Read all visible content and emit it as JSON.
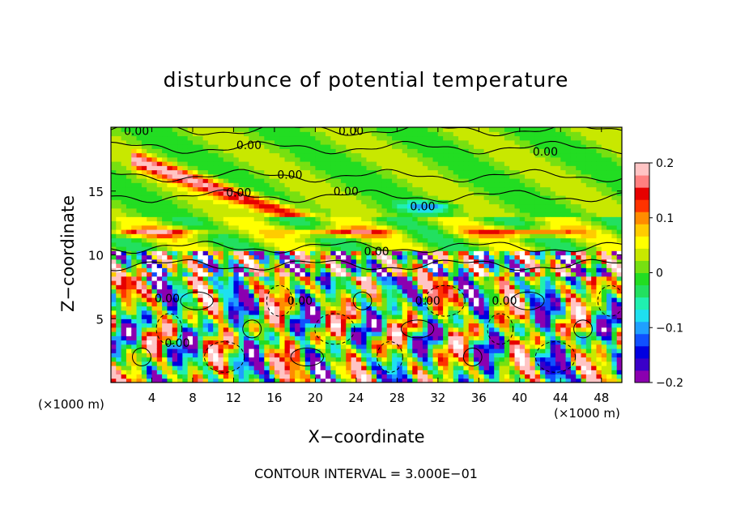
{
  "chart_data": {
    "type": "heatmap",
    "title": "disturbunce of potential temperature",
    "xlabel": "X−coordinate",
    "ylabel": "Z−coordinate",
    "x_unit_label": "(×1000 m)",
    "x_unit_label_right": "(×1000 m)",
    "footnote": "CONTOUR INTERVAL = 3.000E−01",
    "xlim": [
      0,
      50
    ],
    "ylim": [
      0,
      20
    ],
    "x_ticks": [
      4,
      8,
      12,
      16,
      20,
      24,
      28,
      32,
      36,
      40,
      44,
      48
    ],
    "y_ticks": [
      5,
      10,
      15
    ],
    "colorbar": {
      "range": [
        -0.2,
        0.2
      ],
      "ticks": [
        {
          "value": 0.2,
          "label": "0.2"
        },
        {
          "value": 0.1,
          "label": "0.1"
        },
        {
          "value": 0,
          "label": "0"
        },
        {
          "value": -0.1,
          "label": "−0.1"
        },
        {
          "value": -0.2,
          "label": "−0.2"
        }
      ],
      "colors": [
        "#8b00b0",
        "#3a00c8",
        "#0000e0",
        "#1050ff",
        "#1fa0ff",
        "#1ee0f0",
        "#20f0b0",
        "#22e060",
        "#22dd22",
        "#77e011",
        "#c8e800",
        "#ffff00",
        "#ffcc00",
        "#ff8c00",
        "#ff3300",
        "#e60000",
        "#ff8080",
        "#ffc4c4"
      ]
    },
    "contour_labels": [
      {
        "x": 2.5,
        "y": 19.7,
        "text": "0.00"
      },
      {
        "x": 23.5,
        "y": 19.7,
        "text": "0.00"
      },
      {
        "x": 13.5,
        "y": 18.6,
        "text": "0.00"
      },
      {
        "x": 42.5,
        "y": 18.1,
        "text": "0.00"
      },
      {
        "x": 17.5,
        "y": 16.3,
        "text": "0.00"
      },
      {
        "x": 12.5,
        "y": 14.9,
        "text": "0.00"
      },
      {
        "x": 23.0,
        "y": 15.0,
        "text": "0.00"
      },
      {
        "x": 30.5,
        "y": 13.8,
        "text": "0.00"
      },
      {
        "x": 26.0,
        "y": 10.3,
        "text": "0.00"
      },
      {
        "x": 5.5,
        "y": 6.6,
        "text": "0.00"
      },
      {
        "x": 18.5,
        "y": 6.4,
        "text": "0.00"
      },
      {
        "x": 31.0,
        "y": 6.4,
        "text": "0.00"
      },
      {
        "x": 38.5,
        "y": 6.4,
        "text": "0.00"
      },
      {
        "x": 6.5,
        "y": 3.1,
        "text": "0.00"
      }
    ]
  }
}
